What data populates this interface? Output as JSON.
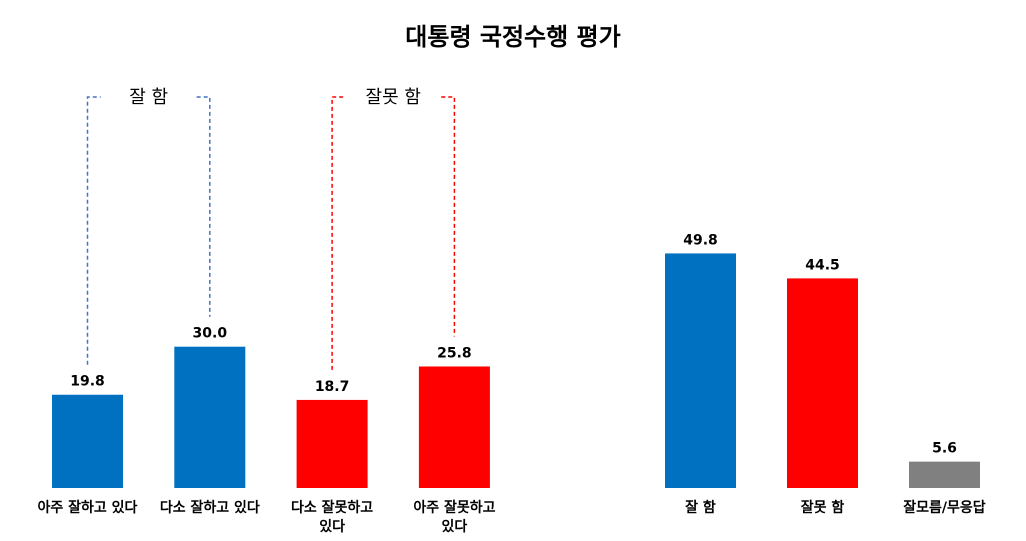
{
  "chart_data": [
    {
      "type": "bar",
      "title": "대통령 국정수행 평가",
      "categories": [
        "아주 잘하고 있다",
        "다소 잘하고 있다",
        "다소 잘못하고 있다",
        "아주 잘못하고 있다"
      ],
      "category_lines": [
        [
          "아주 잘하고 있다"
        ],
        [
          "다소 잘하고 있다"
        ],
        [
          "다소 잘못하고",
          "있다"
        ],
        [
          "아주 잘못하고",
          "있다"
        ]
      ],
      "values": [
        19.8,
        30.0,
        18.7,
        25.8
      ],
      "labels": [
        "19.8",
        "30.0",
        "18.7",
        "25.8"
      ],
      "colors": [
        "#0070C0",
        "#0070C0",
        "#FF0000",
        "#FF0000"
      ],
      "groups": [
        {
          "label": "잘 함",
          "members": [
            0,
            1
          ],
          "color": "#4472C4"
        },
        {
          "label": "잘못 함",
          "members": [
            2,
            3
          ],
          "color": "#FF0000"
        }
      ],
      "ylim": [
        0,
        60
      ],
      "grid": false
    },
    {
      "type": "bar",
      "categories": [
        "잘 함",
        "잘못 함",
        "잘모름/무응답"
      ],
      "values": [
        49.8,
        44.5,
        5.6
      ],
      "labels": [
        "49.8",
        "44.5",
        "5.6"
      ],
      "colors": [
        "#0070C0",
        "#FF0000",
        "#808080"
      ],
      "ylim": [
        0,
        60
      ],
      "grid": false
    }
  ]
}
